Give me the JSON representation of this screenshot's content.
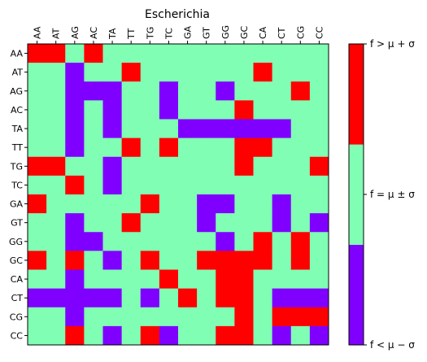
{
  "chart_data": {
    "type": "heatmap",
    "title": "Escherichia",
    "categories": [
      "AA",
      "AT",
      "AG",
      "AC",
      "TA",
      "TT",
      "TG",
      "TC",
      "GA",
      "GT",
      "GG",
      "GC",
      "CA",
      "CT",
      "CG",
      "CC"
    ],
    "level_codes": {
      "0": "f < μ − σ",
      "1": "f = μ ± σ",
      "2": "f > μ + σ"
    },
    "matrix": [
      [
        2,
        2,
        1,
        2,
        1,
        1,
        1,
        1,
        1,
        1,
        1,
        1,
        1,
        1,
        1,
        1
      ],
      [
        1,
        1,
        0,
        1,
        1,
        2,
        1,
        1,
        1,
        1,
        1,
        1,
        2,
        1,
        1,
        1
      ],
      [
        1,
        1,
        0,
        0,
        0,
        1,
        1,
        0,
        1,
        1,
        0,
        1,
        1,
        1,
        2,
        1
      ],
      [
        1,
        1,
        0,
        1,
        0,
        1,
        1,
        0,
        1,
        1,
        1,
        2,
        1,
        1,
        1,
        1
      ],
      [
        1,
        1,
        0,
        1,
        0,
        1,
        1,
        1,
        0,
        0,
        0,
        0,
        0,
        0,
        1,
        1
      ],
      [
        1,
        1,
        0,
        1,
        1,
        2,
        1,
        2,
        1,
        1,
        1,
        2,
        2,
        1,
        1,
        1
      ],
      [
        2,
        2,
        1,
        1,
        0,
        1,
        1,
        1,
        1,
        1,
        1,
        2,
        1,
        1,
        1,
        2
      ],
      [
        1,
        1,
        2,
        1,
        0,
        1,
        1,
        1,
        1,
        1,
        1,
        1,
        1,
        1,
        1,
        1
      ],
      [
        2,
        1,
        1,
        1,
        1,
        1,
        2,
        1,
        1,
        0,
        0,
        1,
        1,
        0,
        1,
        1
      ],
      [
        1,
        1,
        0,
        1,
        1,
        2,
        1,
        1,
        1,
        0,
        1,
        1,
        1,
        0,
        1,
        0
      ],
      [
        1,
        1,
        0,
        0,
        1,
        1,
        1,
        1,
        1,
        1,
        0,
        1,
        2,
        1,
        2,
        1
      ],
      [
        2,
        1,
        2,
        1,
        0,
        1,
        2,
        1,
        1,
        2,
        2,
        2,
        2,
        1,
        2,
        1
      ],
      [
        1,
        1,
        0,
        1,
        1,
        1,
        1,
        2,
        1,
        1,
        2,
        2,
        1,
        1,
        1,
        1
      ],
      [
        0,
        0,
        0,
        0,
        0,
        1,
        0,
        1,
        2,
        1,
        2,
        2,
        1,
        0,
        0,
        0
      ],
      [
        1,
        1,
        0,
        1,
        1,
        1,
        1,
        1,
        1,
        1,
        1,
        2,
        1,
        2,
        2,
        2
      ],
      [
        1,
        1,
        2,
        1,
        0,
        1,
        2,
        0,
        1,
        1,
        2,
        2,
        1,
        0,
        1,
        0
      ]
    ],
    "colors": {
      "low": "#8000ff",
      "mid": "#80ffb4",
      "high": "#ff0000"
    },
    "colorbar": {
      "ticks": [
        "f < μ − σ",
        "f = μ ± σ",
        "f > μ + σ"
      ],
      "segments": [
        {
          "level": 0,
          "color": "#8000ff"
        },
        {
          "level": 1,
          "color": "#80ffb4"
        },
        {
          "level": 2,
          "color": "#ff0000"
        }
      ]
    }
  }
}
